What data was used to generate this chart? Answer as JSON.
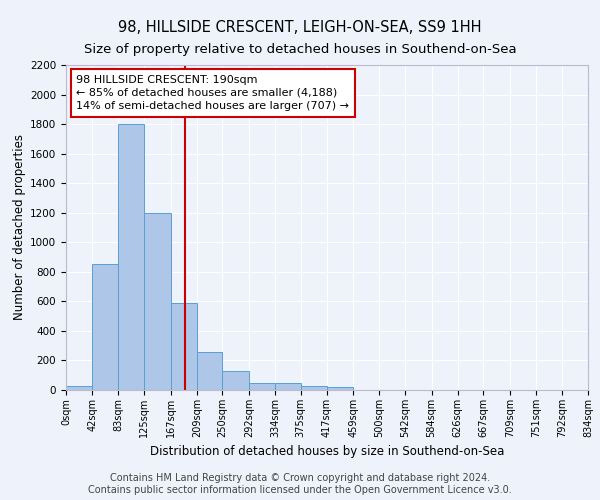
{
  "title": "98, HILLSIDE CRESCENT, LEIGH-ON-SEA, SS9 1HH",
  "subtitle": "Size of property relative to detached houses in Southend-on-Sea",
  "xlabel": "Distribution of detached houses by size in Southend-on-Sea",
  "ylabel": "Number of detached properties",
  "footer_line1": "Contains HM Land Registry data © Crown copyright and database right 2024.",
  "footer_line2": "Contains public sector information licensed under the Open Government Licence v3.0.",
  "bin_edges": [
    0,
    42,
    83,
    125,
    167,
    209,
    250,
    292,
    334,
    375,
    417,
    459,
    500,
    542,
    584,
    626,
    667,
    709,
    751,
    792,
    834
  ],
  "bar_heights": [
    25,
    850,
    1800,
    1200,
    590,
    255,
    130,
    45,
    45,
    30,
    20,
    0,
    0,
    0,
    0,
    0,
    0,
    0,
    0,
    0
  ],
  "bar_color": "#aec6e8",
  "bar_edge_color": "#5a9fd4",
  "subject_value": 190,
  "red_line_color": "#cc0000",
  "annotation_text_line1": "98 HILLSIDE CRESCENT: 190sqm",
  "annotation_text_line2": "← 85% of detached houses are smaller (4,188)",
  "annotation_text_line3": "14% of semi-detached houses are larger (707) →",
  "annotation_box_color": "#ffffff",
  "annotation_box_edge_color": "#cc0000",
  "ylim": [
    0,
    2200
  ],
  "tick_labels": [
    "0sqm",
    "42sqm",
    "83sqm",
    "125sqm",
    "167sqm",
    "209sqm",
    "250sqm",
    "292sqm",
    "334sqm",
    "375sqm",
    "417sqm",
    "459sqm",
    "500sqm",
    "542sqm",
    "584sqm",
    "626sqm",
    "667sqm",
    "709sqm",
    "751sqm",
    "792sqm",
    "834sqm"
  ],
  "background_color": "#eef2fb",
  "grid_color": "#ffffff",
  "title_fontsize": 10.5,
  "subtitle_fontsize": 9.5,
  "ylabel_fontsize": 8.5,
  "xlabel_fontsize": 8.5,
  "tick_fontsize": 7,
  "annotation_fontsize": 8,
  "footer_fontsize": 7
}
